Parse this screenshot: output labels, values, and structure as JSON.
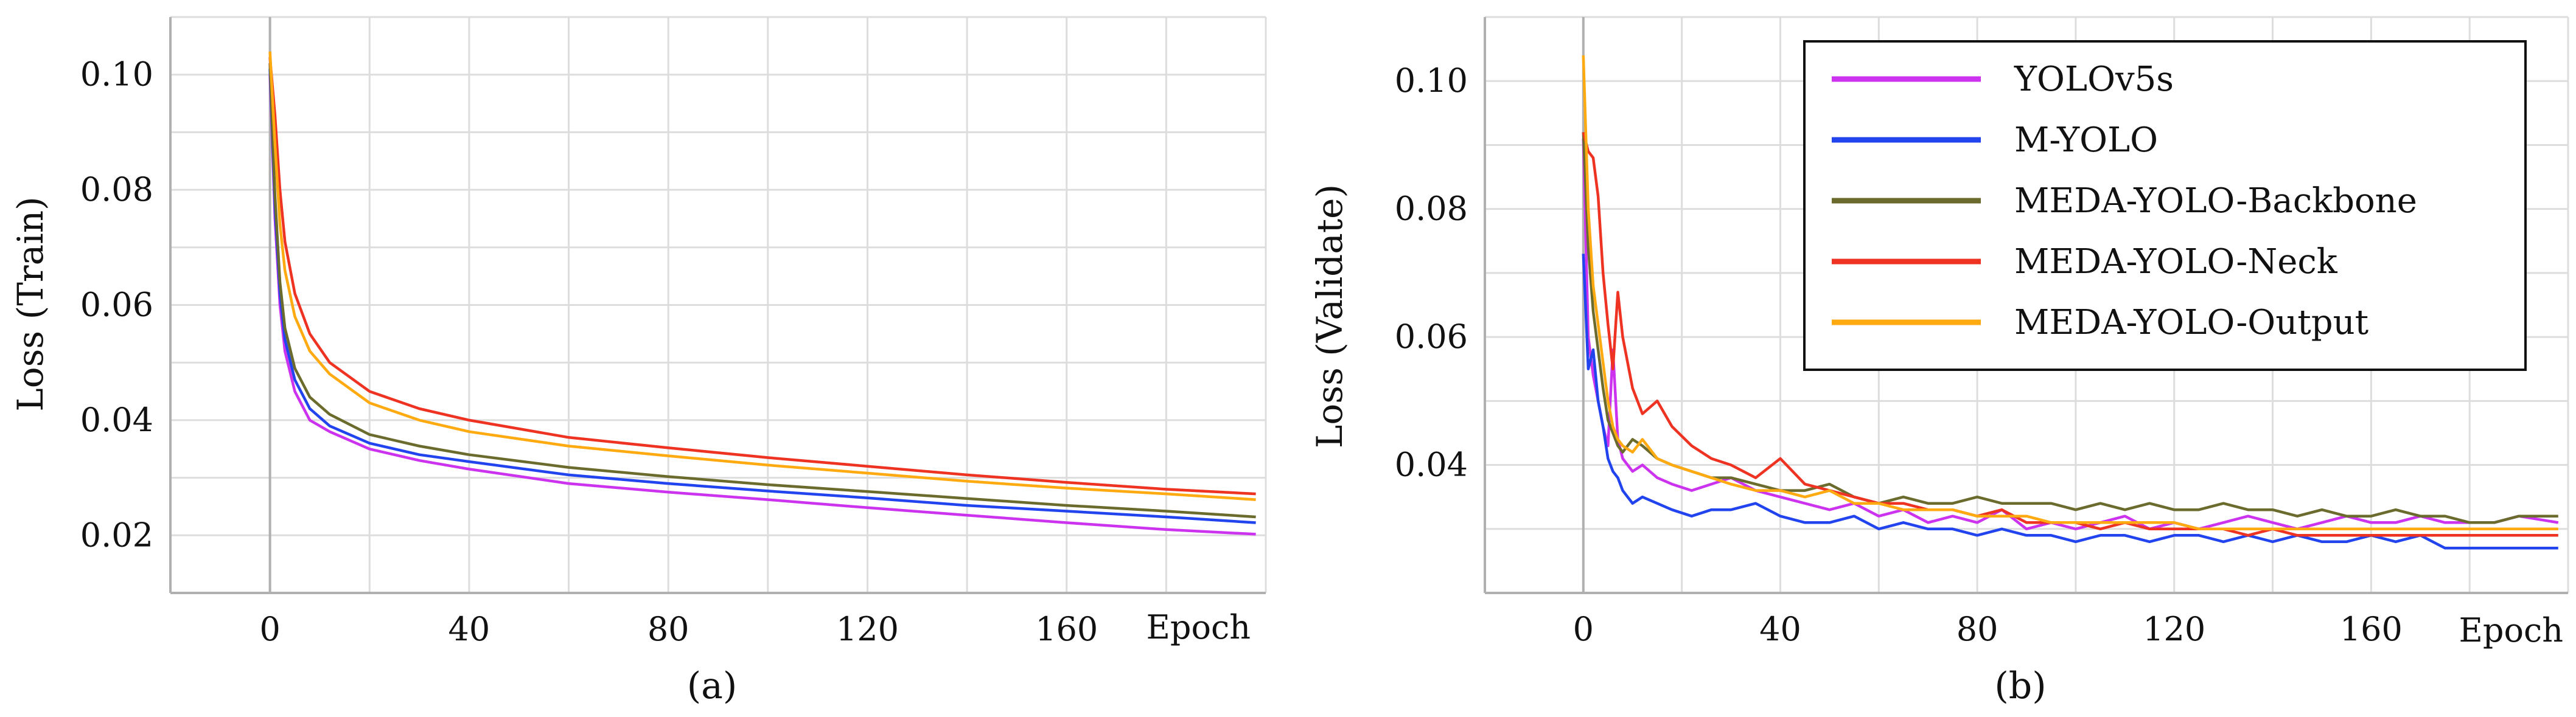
{
  "figure": {
    "subpanel_labels": [
      "(a)",
      "(b)"
    ]
  },
  "chart_data": [
    {
      "type": "line",
      "panel": "(a)",
      "title": "",
      "xlabel": "Epoch",
      "ylabel": "Loss (Train)",
      "xlim": [
        -20,
        200
      ],
      "ylim": [
        0.01,
        0.11
      ],
      "xticks": [
        "0",
        "40",
        "80",
        "120",
        "160"
      ],
      "yticks": [
        "0.02",
        "0.04",
        "0.06",
        "0.08",
        "0.10"
      ],
      "grid": true,
      "legend": "none",
      "x": [
        0,
        1,
        2,
        3,
        5,
        8,
        12,
        20,
        30,
        40,
        60,
        80,
        100,
        120,
        140,
        160,
        180,
        198
      ],
      "series": [
        {
          "name": "YOLOv5s",
          "color": "#cc33ee",
          "values": [
            0.1,
            0.075,
            0.06,
            0.052,
            0.045,
            0.04,
            0.038,
            0.035,
            0.033,
            0.0315,
            0.029,
            0.0275,
            0.0262,
            0.0248,
            0.0235,
            0.0222,
            0.021,
            0.0202
          ]
        },
        {
          "name": "M-YOLO",
          "color": "#2244ee",
          "values": [
            0.101,
            0.077,
            0.062,
            0.054,
            0.047,
            0.042,
            0.039,
            0.036,
            0.034,
            0.0328,
            0.0305,
            0.029,
            0.0277,
            0.0265,
            0.0252,
            0.0242,
            0.0232,
            0.0222
          ]
        },
        {
          "name": "MEDA-YOLO-Backbone",
          "color": "#6b6b2e",
          "values": [
            0.102,
            0.079,
            0.064,
            0.056,
            0.049,
            0.044,
            0.041,
            0.0375,
            0.0355,
            0.034,
            0.0318,
            0.0302,
            0.0288,
            0.0276,
            0.0264,
            0.0252,
            0.0242,
            0.0232
          ]
        },
        {
          "name": "MEDA-YOLO-Neck",
          "color": "#ee3322",
          "values": [
            0.103,
            0.093,
            0.08,
            0.071,
            0.062,
            0.055,
            0.05,
            0.045,
            0.042,
            0.04,
            0.037,
            0.0352,
            0.0335,
            0.032,
            0.0305,
            0.0292,
            0.028,
            0.0272
          ]
        },
        {
          "name": "MEDA-YOLO-Output",
          "color": "#ffaa11",
          "values": [
            0.104,
            0.088,
            0.074,
            0.066,
            0.058,
            0.052,
            0.048,
            0.043,
            0.04,
            0.038,
            0.0355,
            0.0338,
            0.0322,
            0.0308,
            0.0294,
            0.0282,
            0.0272,
            0.0262
          ]
        }
      ]
    },
    {
      "type": "line",
      "panel": "(b)",
      "title": "",
      "xlabel": "Epoch",
      "ylabel": "Loss (Validate)",
      "xlim": [
        -20,
        200
      ],
      "ylim": [
        0.02,
        0.11
      ],
      "xticks": [
        "0",
        "40",
        "80",
        "120",
        "160"
      ],
      "yticks": [
        "0.04",
        "0.06",
        "0.08",
        "0.10"
      ],
      "grid": true,
      "legend": "top-right",
      "x": [
        0,
        1,
        2,
        3,
        4,
        5,
        6,
        7,
        8,
        10,
        12,
        15,
        18,
        22,
        26,
        30,
        35,
        40,
        45,
        50,
        55,
        60,
        65,
        70,
        75,
        80,
        85,
        90,
        95,
        100,
        105,
        110,
        115,
        120,
        125,
        130,
        135,
        140,
        145,
        150,
        155,
        160,
        165,
        170,
        175,
        180,
        185,
        190,
        198
      ],
      "series": [
        {
          "name": "YOLOv5s",
          "color": "#cc33ee",
          "values": [
            0.091,
            0.06,
            0.054,
            0.05,
            0.046,
            0.043,
            0.058,
            0.044,
            0.041,
            0.039,
            0.04,
            0.038,
            0.037,
            0.036,
            0.037,
            0.038,
            0.036,
            0.035,
            0.034,
            0.033,
            0.034,
            0.032,
            0.033,
            0.031,
            0.032,
            0.031,
            0.033,
            0.03,
            0.031,
            0.03,
            0.031,
            0.032,
            0.03,
            0.031,
            0.03,
            0.031,
            0.032,
            0.031,
            0.03,
            0.031,
            0.032,
            0.031,
            0.031,
            0.032,
            0.031,
            0.031,
            0.031,
            0.032,
            0.031
          ]
        },
        {
          "name": "M-YOLO",
          "color": "#2244ee",
          "values": [
            0.073,
            0.055,
            0.058,
            0.05,
            0.046,
            0.041,
            0.039,
            0.038,
            0.036,
            0.034,
            0.035,
            0.034,
            0.033,
            0.032,
            0.033,
            0.033,
            0.034,
            0.032,
            0.031,
            0.031,
            0.032,
            0.03,
            0.031,
            0.03,
            0.03,
            0.029,
            0.03,
            0.029,
            0.029,
            0.028,
            0.029,
            0.029,
            0.028,
            0.029,
            0.029,
            0.028,
            0.029,
            0.028,
            0.029,
            0.028,
            0.028,
            0.029,
            0.028,
            0.029,
            0.027,
            0.027,
            0.027,
            0.027,
            0.027
          ]
        },
        {
          "name": "MEDA-YOLO-Backbone",
          "color": "#6b6b2e",
          "values": [
            0.092,
            0.074,
            0.064,
            0.058,
            0.052,
            0.047,
            0.045,
            0.043,
            0.042,
            0.044,
            0.043,
            0.041,
            0.04,
            0.039,
            0.038,
            0.038,
            0.037,
            0.036,
            0.036,
            0.037,
            0.035,
            0.034,
            0.035,
            0.034,
            0.034,
            0.035,
            0.034,
            0.034,
            0.034,
            0.033,
            0.034,
            0.033,
            0.034,
            0.033,
            0.033,
            0.034,
            0.033,
            0.033,
            0.032,
            0.033,
            0.032,
            0.032,
            0.033,
            0.032,
            0.032,
            0.031,
            0.031,
            0.032,
            0.032
          ]
        },
        {
          "name": "MEDA-YOLO-Neck",
          "color": "#ee3322",
          "values": [
            0.092,
            0.089,
            0.088,
            0.082,
            0.07,
            0.062,
            0.055,
            0.067,
            0.06,
            0.052,
            0.048,
            0.05,
            0.046,
            0.043,
            0.041,
            0.04,
            0.038,
            0.041,
            0.037,
            0.036,
            0.035,
            0.034,
            0.034,
            0.033,
            0.033,
            0.032,
            0.033,
            0.031,
            0.031,
            0.031,
            0.03,
            0.031,
            0.03,
            0.03,
            0.03,
            0.03,
            0.029,
            0.03,
            0.029,
            0.029,
            0.029,
            0.029,
            0.029,
            0.029,
            0.029,
            0.029,
            0.029,
            0.029,
            0.029
          ]
        },
        {
          "name": "MEDA-YOLO-Output",
          "color": "#ffaa11",
          "values": [
            0.104,
            0.08,
            0.068,
            0.062,
            0.056,
            0.05,
            0.046,
            0.044,
            0.043,
            0.042,
            0.044,
            0.041,
            0.04,
            0.039,
            0.038,
            0.037,
            0.036,
            0.036,
            0.035,
            0.036,
            0.034,
            0.034,
            0.033,
            0.033,
            0.033,
            0.032,
            0.032,
            0.032,
            0.031,
            0.031,
            0.031,
            0.031,
            0.031,
            0.031,
            0.03,
            0.03,
            0.03,
            0.03,
            0.03,
            0.03,
            0.03,
            0.03,
            0.03,
            0.03,
            0.03,
            0.03,
            0.03,
            0.03,
            0.03
          ]
        }
      ]
    }
  ]
}
